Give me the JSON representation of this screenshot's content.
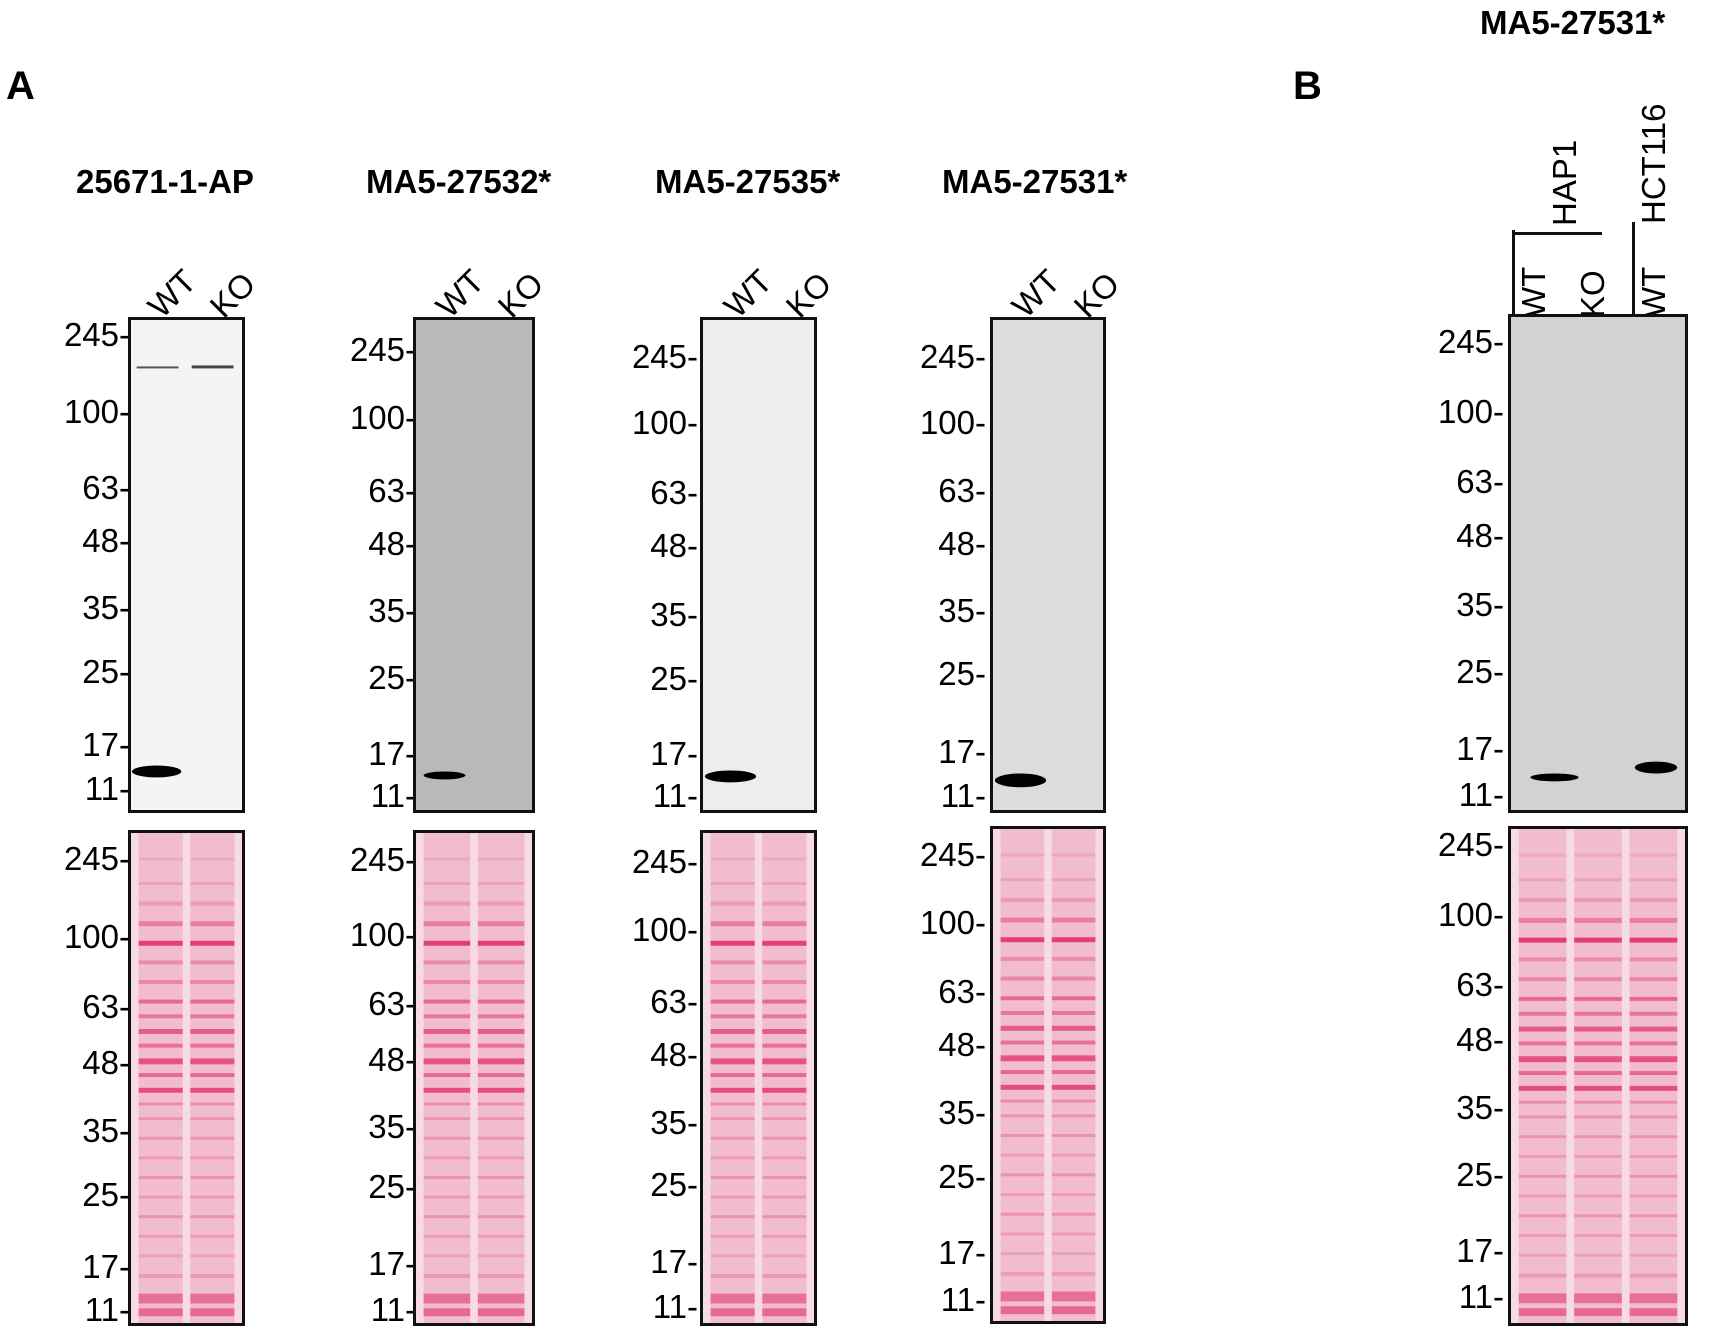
{
  "panels": [
    {
      "letter": "A"
    },
    {
      "letter": "B"
    }
  ],
  "panel_a": {
    "blots": [
      {
        "antibody": "25671-1-AP",
        "lanes": [
          "WT",
          "KO"
        ],
        "markers": [
          "245-",
          "100-",
          "63-",
          "48-",
          "35-",
          "25-",
          "17-",
          "11-"
        ],
        "stain_markers": [
          "245-",
          "100-",
          "63-",
          "48-",
          "35-",
          "25-",
          "17-",
          "11-"
        ],
        "background": "#f4f4f4"
      },
      {
        "antibody": "MA5-27532*",
        "lanes": [
          "WT",
          "KO"
        ],
        "markers": [
          "245-",
          "100-",
          "63-",
          "48-",
          "35-",
          "25-",
          "17-",
          "11-"
        ],
        "stain_markers": [
          "245-",
          "100-",
          "63-",
          "48-",
          "35-",
          "25-",
          "17-",
          "11-"
        ],
        "background": "#b9b9b9"
      },
      {
        "antibody": "MA5-27535*",
        "lanes": [
          "WT",
          "KO"
        ],
        "markers": [
          "245-",
          "100-",
          "63-",
          "48-",
          "35-",
          "25-",
          "17-",
          "11-"
        ],
        "stain_markers": [
          "245-",
          "100-",
          "63-",
          "48-",
          "35-",
          "25-",
          "17-",
          "11-"
        ],
        "background": "#ededed"
      },
      {
        "antibody": "MA5-27531*",
        "lanes": [
          "WT",
          "KO"
        ],
        "markers": [
          "245-",
          "100-",
          "63-",
          "48-",
          "35-",
          "25-",
          "17-",
          "11-"
        ],
        "stain_markers": [
          "245-",
          "100-",
          "63-",
          "48-",
          "35-",
          "25-",
          "17-",
          "11-"
        ],
        "background": "#dcdcdc"
      }
    ]
  },
  "panel_b": {
    "antibody": "MA5-27531*",
    "lanes": [
      "WT",
      "KO",
      "WT"
    ],
    "cell_lines": [
      "HAP1",
      "HCT116"
    ],
    "markers": [
      "245-",
      "100-",
      "63-",
      "48-",
      "35-",
      "25-",
      "17-",
      "11-"
    ],
    "stain_markers": [
      "245-",
      "100-",
      "63-",
      "48-",
      "35-",
      "25-",
      "17-",
      "11-"
    ],
    "background": "#d2d2d2"
  },
  "colors": {
    "stain_base": "#f7dbe4",
    "stain_band": "#e0306e",
    "band": "#000000"
  }
}
